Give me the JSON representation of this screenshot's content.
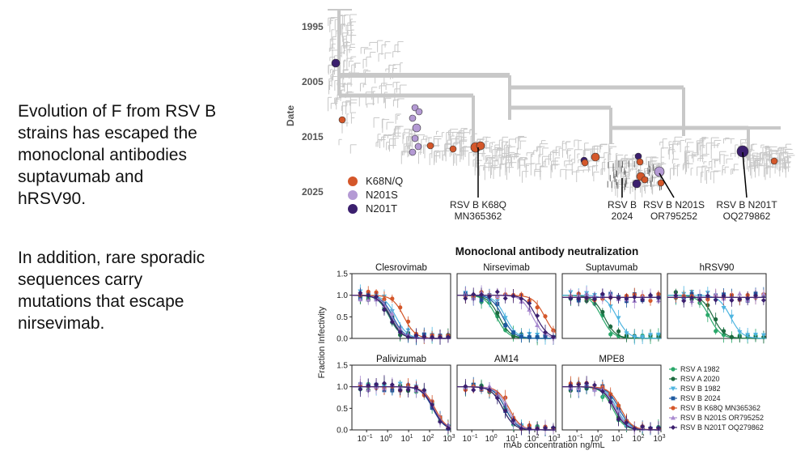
{
  "slide": {
    "paragraph1_lines": [
      "Evolution of F from RSV B",
      "strains has escaped the",
      "monoclonal antibodies",
      "suptavumab and",
      "hRSV90."
    ],
    "paragraph2_lines": [
      "In addition, rare sporadic",
      "sequences carry",
      "mutations that escape",
      "nirsevimab."
    ]
  },
  "colors": {
    "K68": "#d4572a",
    "N201S": "#b49ad4",
    "N201T": "#3b1f6e",
    "tree": "#c8c8c8",
    "rsvA1982": "#2aa86a",
    "rsvA2020": "#1e6b40",
    "rsvB1982": "#4fb5e0",
    "rsvB2024": "#1e5aa0",
    "rsvBK68Q": "#d4572a",
    "rsvBN201S": "#a98ad0",
    "rsvBN201T": "#3b1f6e"
  },
  "chart_data": [
    {
      "type": "scatter",
      "name": "phylogenetic-tree",
      "ylabel": "Date",
      "yticks": [
        "1995",
        "2005",
        "2015",
        "2025"
      ],
      "ylim": [
        1995,
        2025
      ],
      "legend": [
        "K68N/Q",
        "N201S",
        "N201T"
      ],
      "annotations": [
        {
          "lines": [
            "RSV B K68Q",
            "MN365362"
          ],
          "year": 2017
        },
        {
          "lines": [
            "RSV B",
            "2024"
          ],
          "year": 2024
        },
        {
          "lines": [
            "RSV B N201S",
            "OR795252"
          ],
          "year": 2022
        },
        {
          "lines": [
            "RSV B N201T",
            "OQ279862"
          ],
          "year": 2017
        }
      ]
    },
    {
      "type": "line",
      "title": "Monoclonal antibody neutralization",
      "ylabel": "Fraction Infectivity",
      "xlabel": "mAb concentration ng/mL",
      "xlim": [
        0.02,
        1000
      ],
      "ylim": [
        0,
        1.5
      ],
      "yticks": [
        "0.0",
        "0.5",
        "1.0",
        "1.5"
      ],
      "xticks": [
        {
          "base": "10",
          "exp": "−1"
        },
        {
          "base": "10",
          "exp": "0"
        },
        {
          "base": "10",
          "exp": "1"
        },
        {
          "base": "10",
          "exp": "2"
        },
        {
          "base": "10",
          "exp": "3"
        }
      ],
      "legend": [
        "RSV A 1982",
        "RSV A 2020",
        "RSV B 1982",
        "RSV B 2024",
        "RSV B K68Q MN365362",
        "RSV B N201S OR795252",
        "RSV B N201T OQ279862"
      ],
      "panels": [
        {
          "title": "Clesrovimab",
          "ic50": [
            1.2,
            1.4,
            2.5,
            1.8,
            6,
            1.6,
            1.3
          ]
        },
        {
          "title": "Nirsevimab",
          "ic50": [
            1.5,
            2,
            4,
            3,
            300,
            80,
            120
          ]
        },
        {
          "title": "Suptavumab",
          "ic50": [
            1.5,
            2,
            8,
            null,
            null,
            null,
            null
          ]
        },
        {
          "title": "hRSV90",
          "ic50": [
            2,
            3,
            20,
            null,
            null,
            null,
            null
          ]
        },
        {
          "title": "Palivizumab",
          "ic50": [
            150,
            160,
            170,
            140,
            180,
            160,
            150
          ]
        },
        {
          "title": "AM14",
          "ic50": [
            3,
            4,
            5,
            4,
            6,
            5,
            3
          ]
        },
        {
          "title": "MPE8",
          "ic50": [
            5,
            6,
            8,
            10,
            12,
            7,
            6
          ]
        }
      ]
    }
  ]
}
